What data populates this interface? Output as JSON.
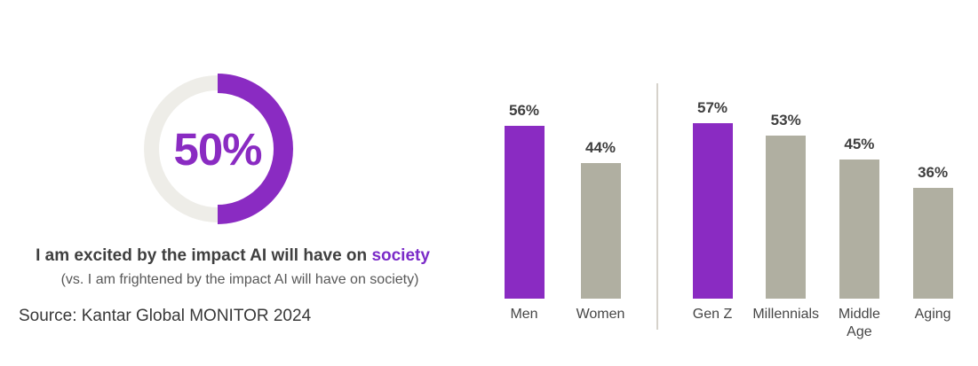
{
  "source": "Source: Kantar Global MONITOR 2024",
  "statement": {
    "prefix": "I am excited by the impact AI will have on ",
    "highlight": "society",
    "comparison": "(vs. I am frightened by the impact AI will have on society)"
  },
  "colors": {
    "purple": "#8A2BC2",
    "bar_gray": "#B0AFA1",
    "donut_track": "#EEEDE8",
    "divider": "#D6D2CB",
    "text_dark": "#3F3F3F"
  },
  "chart_data": [
    {
      "type": "donut",
      "title": "I am excited by the impact AI will have on society",
      "subtitle": "(vs. I am frightened by the impact AI will have on society)",
      "value": 50,
      "center_label": "50%",
      "filled_color": "#8A2BC2",
      "track_color": "#EEEDE8",
      "fill_layout": "right half filled, from 12 o'clock clockwise to 6 o'clock"
    },
    {
      "type": "bar",
      "unit": "percent",
      "ylim": [
        0,
        60
      ],
      "grid": false,
      "legend": false,
      "bar_colors": {
        "highlight": "#8A2BC2",
        "default": "#B0AFA1"
      },
      "groups": [
        {
          "name": "gender",
          "items": [
            {
              "label": "Men",
              "label_lines": [
                "Men"
              ],
              "value": 56,
              "value_label": "56%",
              "highlight": true
            },
            {
              "label": "Women",
              "label_lines": [
                "Women"
              ],
              "value": 44,
              "value_label": "44%",
              "highlight": false
            }
          ]
        },
        {
          "name": "generation",
          "items": [
            {
              "label": "Gen Z",
              "label_lines": [
                "Gen Z"
              ],
              "value": 57,
              "value_label": "57%",
              "highlight": true
            },
            {
              "label": "Millennials",
              "label_lines": [
                "Millennials"
              ],
              "value": 53,
              "value_label": "53%",
              "highlight": false
            },
            {
              "label": "Middle Age",
              "label_lines": [
                "Middle",
                "Age"
              ],
              "value": 45,
              "value_label": "45%",
              "highlight": false
            },
            {
              "label": "Aging",
              "label_lines": [
                "Aging"
              ],
              "value": 36,
              "value_label": "36%",
              "highlight": false
            }
          ]
        }
      ]
    }
  ]
}
